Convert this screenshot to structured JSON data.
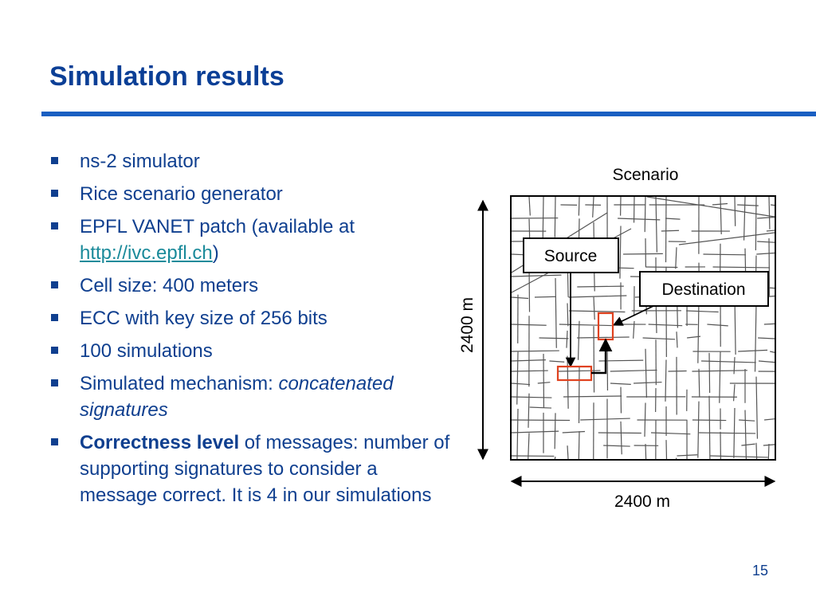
{
  "slide": {
    "title": "Simulation results",
    "page_number": "15"
  },
  "bullets": {
    "item1": "ns-2 simulator",
    "item2": "Rice scenario generator",
    "item3_text": "EPFL VANET patch (available at",
    "item3_link": "http://ivc.epfl.ch",
    "item3_close": ")",
    "item4": "Cell size: 400 meters",
    "item5": "ECC with key size of 256 bits",
    "item6": "100 simulations",
    "item7_text": "Simulated mechanism: ",
    "item7_italic": "concatenated signatures",
    "item8_bold": "Correctness level",
    "item8_text": " of messages: number of supporting signatures to consider a message correct. It is 4 in our simulations"
  },
  "diagram": {
    "title": "Scenario",
    "height_label": "2400 m",
    "width_label": "2400 m",
    "source_label": "Source",
    "destination_label": "Destination"
  },
  "colors": {
    "title": "#0b3f96",
    "rule": "#1a5fc2",
    "bullet_text": "#0f3f8f",
    "link": "#1a8a9a",
    "highlight_box": "#e0421f"
  }
}
